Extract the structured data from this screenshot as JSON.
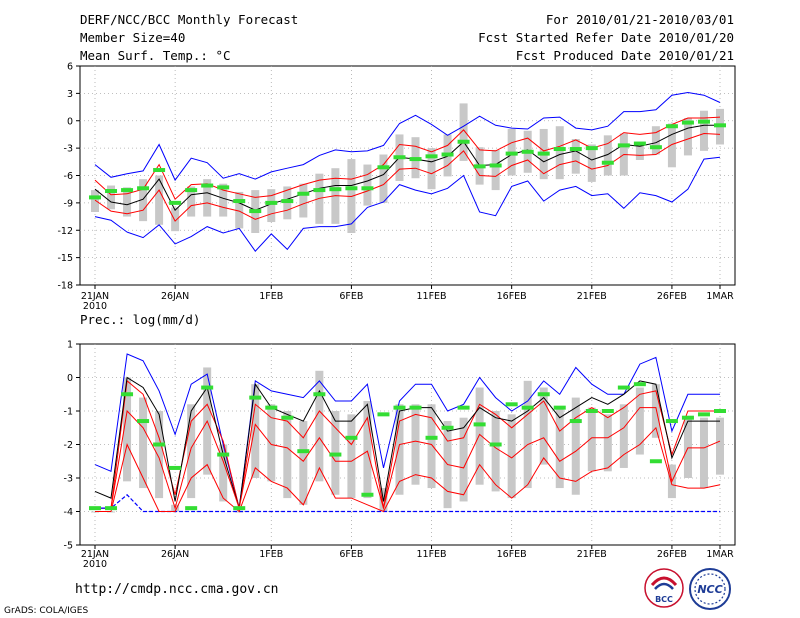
{
  "header": {
    "title": "DERF/NCC/BCC Monthly Forecast",
    "members": "Member Size=40",
    "variable": "Mean Surf. Temp.: °C",
    "period": "For 2010/01/21-2010/03/01",
    "refer": "Fcst Started Refer Date 2010/01/20",
    "produced": "Fcst Produced Date 2010/01/21"
  },
  "footer": {
    "url": "http://cmdp.ncc.cma.gov.cn",
    "credit": "GrADS: COLA/IGES"
  },
  "logos": {
    "bcc": "BCC",
    "ncc": "NCC"
  },
  "colors": {
    "mean": "#000000",
    "spread": "#ff0000",
    "extreme": "#0000ff",
    "box": "#c8c8c8",
    "obs": "#33dd33"
  },
  "chart_data": [
    {
      "type": "line",
      "title": "Mean Surf. Temp.: °C",
      "x_days": 40,
      "ylim": [
        -18,
        6
      ],
      "yticks": [
        6,
        3,
        0,
        -3,
        -6,
        -9,
        -12,
        -15,
        -18
      ],
      "xticks": [
        {
          "day": 0,
          "label": "21JAN",
          "sub": "2010"
        },
        {
          "day": 5,
          "label": "26JAN"
        },
        {
          "day": 11,
          "label": "1FEB"
        },
        {
          "day": 16,
          "label": "6FEB"
        },
        {
          "day": 21,
          "label": "11FEB"
        },
        {
          "day": 26,
          "label": "16FEB"
        },
        {
          "day": 31,
          "label": "21FEB"
        },
        {
          "day": 36,
          "label": "26FEB"
        },
        {
          "day": 39,
          "label": "1MAR"
        }
      ],
      "series": [
        {
          "name": "max",
          "color": "#0000ff",
          "values": [
            -4.8,
            -6.2,
            -5.8,
            -5.5,
            -2.6,
            -6.5,
            -4.1,
            -4.6,
            -6.3,
            -5.8,
            -6.4,
            -5.6,
            -5.2,
            -4.8,
            -3.8,
            -3.2,
            -3.4,
            -3.3,
            -2.7,
            -0.3,
            0.6,
            -0.4,
            -1.6,
            -0.6,
            0.5,
            -0.5,
            -0.8,
            -0.9,
            0.3,
            0.4,
            -0.8,
            -1.0,
            -0.6,
            1.0,
            1.0,
            1.2,
            2.8,
            3.1,
            2.8,
            2.0
          ]
        },
        {
          "name": "mean_plus",
          "color": "#ff0000",
          "values": [
            -6.5,
            -8.1,
            -8.0,
            -7.5,
            -4.8,
            -8.6,
            -7.0,
            -6.9,
            -7.6,
            -8.0,
            -8.4,
            -8.2,
            -7.6,
            -7.0,
            -6.5,
            -6.3,
            -6.4,
            -5.9,
            -4.8,
            -2.6,
            -2.8,
            -3.4,
            -2.7,
            -1.0,
            -3.2,
            -3.3,
            -2.4,
            -1.9,
            -3.3,
            -2.8,
            -2.1,
            -3.0,
            -2.5,
            -1.3,
            -1.5,
            -1.3,
            -0.4,
            0.3,
            0.3,
            0.4
          ]
        },
        {
          "name": "mean",
          "color": "#000000",
          "values": [
            -7.5,
            -8.9,
            -9.2,
            -8.6,
            -6.4,
            -9.8,
            -8.1,
            -7.9,
            -8.5,
            -9.0,
            -9.8,
            -9.1,
            -8.6,
            -8.0,
            -7.4,
            -7.1,
            -7.1,
            -6.6,
            -5.9,
            -4.0,
            -4.2,
            -4.5,
            -3.9,
            -2.3,
            -4.9,
            -4.8,
            -3.7,
            -3.2,
            -4.5,
            -3.7,
            -3.3,
            -4.3,
            -3.7,
            -2.6,
            -2.8,
            -2.4,
            -1.5,
            -0.8,
            -0.5,
            -0.5
          ]
        },
        {
          "name": "mean_minus",
          "color": "#ff0000",
          "values": [
            -8.7,
            -9.9,
            -10.2,
            -9.8,
            -7.6,
            -11.0,
            -9.3,
            -9.0,
            -9.5,
            -9.9,
            -10.8,
            -10.2,
            -9.8,
            -9.1,
            -8.5,
            -8.2,
            -8.3,
            -7.7,
            -7.0,
            -5.3,
            -5.2,
            -5.8,
            -4.9,
            -3.3,
            -6.0,
            -6.1,
            -4.9,
            -4.3,
            -5.8,
            -4.8,
            -4.4,
            -5.3,
            -4.9,
            -3.7,
            -3.8,
            -3.7,
            -2.6,
            -2.0,
            -1.4,
            -1.5
          ]
        },
        {
          "name": "min",
          "color": "#0000ff",
          "values": [
            -10.5,
            -10.9,
            -12.2,
            -12.8,
            -11.4,
            -13.5,
            -12.7,
            -11.6,
            -12.3,
            -11.8,
            -14.3,
            -12.4,
            -14.1,
            -11.8,
            -11.6,
            -11.6,
            -11.3,
            -9.5,
            -8.9,
            -7.0,
            -7.6,
            -8.0,
            -7.4,
            -6.0,
            -10.0,
            -10.4,
            -7.2,
            -6.6,
            -8.8,
            -7.6,
            -7.2,
            -8.2,
            -8.0,
            -9.6,
            -7.9,
            -8.2,
            -8.9,
            -7.5,
            -4.2,
            -4.0
          ]
        }
      ],
      "boxes_low": [
        -10,
        -9.7,
        -10.5,
        -11,
        -11.4,
        -12.1,
        -10.5,
        -10.5,
        -10.5,
        -11.8,
        -12.3,
        -11.1,
        -10.8,
        -10.6,
        -11.3,
        -11.3,
        -12.3,
        -9.3,
        -9.0,
        -6.6,
        -6.3,
        -7.5,
        -6.1,
        -4.4,
        -7.0,
        -7.6,
        -6.0,
        -5.7,
        -6.4,
        -6.4,
        -5.8,
        -6.7,
        -6.0,
        -6.0,
        -4.3,
        -3.7,
        -5.1,
        -3.8,
        -3.3,
        -2.6
      ],
      "boxes_high": [
        -7.6,
        -7.1,
        -7.3,
        -6.4,
        -6.0,
        -9.5,
        -7.2,
        -6.4,
        -6.9,
        -7.8,
        -7.6,
        -7.5,
        -7.2,
        -6.9,
        -5.8,
        -5.2,
        -4.2,
        -4.8,
        -3.7,
        -1.5,
        -1.8,
        -3.0,
        -1.5,
        1.9,
        -2.9,
        -3.2,
        -0.9,
        -1.1,
        -0.9,
        -0.6,
        -2.0,
        -2.6,
        -1.6,
        -1.4,
        -2.3,
        -0.6,
        -0.3,
        0.3,
        1.1,
        1.3
      ],
      "observed": [
        -8.4,
        -7.7,
        -7.6,
        -7.4,
        -5.4,
        -9.0,
        -7.6,
        -7.1,
        -7.3,
        -8.8,
        -9.9,
        -9.0,
        -8.8,
        -8.0,
        -7.6,
        -7.5,
        -7.4,
        -7.4,
        -5.1,
        -4.0,
        -4.2,
        -3.9,
        -3.7,
        -2.3,
        -5.0,
        -4.9,
        -3.6,
        -3.4,
        -3.6,
        -3.1,
        -3.1,
        -3.0,
        -4.6,
        -2.7,
        -2.5,
        -2.9,
        -0.6,
        -0.2,
        -0.1,
        -0.5
      ]
    },
    {
      "type": "line",
      "title": "Prec.: log(mm/d)",
      "x_days": 40,
      "ylim": [
        -5,
        1
      ],
      "yticks": [
        1,
        0,
        -1,
        -2,
        -3,
        -4,
        -5
      ],
      "xticks": [
        {
          "day": 0,
          "label": "21JAN",
          "sub": "2010"
        },
        {
          "day": 5,
          "label": "26JAN"
        },
        {
          "day": 11,
          "label": "1FEB"
        },
        {
          "day": 16,
          "label": "6FEB"
        },
        {
          "day": 21,
          "label": "11FEB"
        },
        {
          "day": 26,
          "label": "16FEB"
        },
        {
          "day": 31,
          "label": "21FEB"
        },
        {
          "day": 36,
          "label": "26FEB"
        },
        {
          "day": 39,
          "label": "1MAR"
        }
      ],
      "series": [
        {
          "name": "max",
          "color": "#0000ff",
          "values": [
            -2.6,
            -2.8,
            0.7,
            0.5,
            -0.4,
            -1.7,
            -0.2,
            0.1,
            -2.0,
            -3.9,
            -0.1,
            -0.4,
            -0.5,
            -0.6,
            -0.1,
            -0.7,
            -0.7,
            -0.2,
            -2.7,
            -0.7,
            -0.2,
            -0.2,
            -1.0,
            -0.8,
            0.0,
            -0.6,
            -1.0,
            -0.7,
            -0.1,
            -0.5,
            0.3,
            -0.2,
            -0.5,
            -0.5,
            0.4,
            0.6,
            -1.6,
            -0.5,
            -0.5,
            -0.5
          ]
        },
        {
          "name": "mean_plus",
          "color": "#ff0000",
          "values": [
            -3.9,
            -3.9,
            -0.1,
            -0.5,
            -1.8,
            -3.5,
            -1.3,
            -0.8,
            -1.9,
            -3.9,
            -0.8,
            -1.2,
            -1.3,
            -1.8,
            -1.0,
            -1.5,
            -2.0,
            -1.2,
            -3.9,
            -1.3,
            -1.1,
            -1.2,
            -1.9,
            -1.8,
            -0.8,
            -1.1,
            -1.5,
            -1.1,
            -0.7,
            -1.6,
            -1.2,
            -0.9,
            -1.2,
            -0.9,
            -0.5,
            -0.4,
            -2.3,
            -1.0,
            -1.0,
            -1.0
          ]
        },
        {
          "name": "mean",
          "color": "#000000",
          "values": [
            -3.4,
            -3.6,
            0.0,
            -0.3,
            -1.1,
            -3.7,
            -1.0,
            -0.3,
            -2.3,
            -3.9,
            -0.2,
            -0.9,
            -1.1,
            -1.3,
            -0.4,
            -1.3,
            -1.3,
            -0.8,
            -3.7,
            -1.0,
            -0.9,
            -0.9,
            -1.6,
            -1.5,
            -0.9,
            -1.2,
            -1.3,
            -1.0,
            -0.6,
            -1.2,
            -0.9,
            -0.6,
            -0.8,
            -0.5,
            -0.1,
            -0.2,
            -2.4,
            -1.3,
            -1.3,
            -1.3
          ]
        },
        {
          "name": "mean_minus",
          "color": "#ff0000",
          "values": [
            -3.9,
            -3.9,
            -1.0,
            -1.5,
            -2.4,
            -3.9,
            -2.1,
            -1.3,
            -2.5,
            -3.9,
            -1.4,
            -2.0,
            -2.1,
            -2.5,
            -1.8,
            -2.5,
            -2.5,
            -2.2,
            -3.9,
            -2.0,
            -1.9,
            -2.0,
            -2.6,
            -2.7,
            -1.7,
            -2.1,
            -2.4,
            -2.0,
            -1.8,
            -2.5,
            -2.2,
            -1.8,
            -1.8,
            -1.5,
            -0.9,
            -0.9,
            -3.1,
            -2.1,
            -2.1,
            -1.9
          ]
        },
        {
          "name": "min",
          "color": "#0000ff",
          "values": [
            -3.9,
            -3.9,
            -3.5,
            -4.0,
            -4.0,
            -4.0,
            -4.0,
            -4.0,
            -4.0,
            -4.0,
            -4.0,
            -4.0,
            -4.0,
            -4.0,
            -4.0,
            -4.0,
            -4.0,
            -4.0,
            -4.0,
            -4.0,
            -4.0,
            -4.0,
            -4.0,
            -4.0,
            -4.0,
            -4.0,
            -4.0,
            -4.0,
            -4.0,
            -4.0,
            -4.0,
            -4.0,
            -4.0,
            -4.0,
            -4.0,
            -4.0,
            -4.0,
            -4.0,
            -4.0,
            -4.0
          ]
        },
        {
          "name": "low_red",
          "color": "#ff0000",
          "values": [
            -4.0,
            -4.0,
            -2.0,
            -3.0,
            -4.0,
            -4.0,
            -3.0,
            -2.6,
            -3.6,
            -4.0,
            -2.7,
            -3.1,
            -3.3,
            -3.8,
            -2.7,
            -3.6,
            -3.6,
            -3.8,
            -4.0,
            -3.1,
            -2.9,
            -3.0,
            -3.4,
            -3.5,
            -2.6,
            -3.2,
            -3.6,
            -3.2,
            -2.4,
            -3.0,
            -3.1,
            -2.8,
            -2.7,
            -2.3,
            -2.0,
            -1.5,
            -3.2,
            -3.3,
            -3.3,
            -3.2
          ]
        }
      ],
      "boxes_low": [
        -4.0,
        -4.0,
        -3.1,
        -3.3,
        -3.6,
        -4.0,
        -3.6,
        -2.9,
        -3.7,
        -4.0,
        -3.0,
        -3.1,
        -3.6,
        -3.8,
        -3.1,
        -3.5,
        -3.6,
        -3.6,
        -4.0,
        -3.5,
        -3.2,
        -3.3,
        -3.9,
        -3.7,
        -3.2,
        -3.4,
        -3.6,
        -3.3,
        -2.6,
        -3.3,
        -3.5,
        -2.8,
        -2.8,
        -2.7,
        -2.3,
        -1.8,
        -3.6,
        -3.0,
        -3.3,
        -2.9
      ],
      "boxes_high": [
        -4.0,
        -4.0,
        0.0,
        -0.6,
        -1.0,
        -3.8,
        -0.8,
        0.3,
        -2.0,
        -4.0,
        -0.2,
        -0.8,
        -1.0,
        -1.3,
        0.2,
        -1.0,
        -1.1,
        -0.7,
        -3.3,
        -0.8,
        -0.8,
        -0.8,
        -1.3,
        -1.2,
        -0.3,
        -1.0,
        -1.1,
        -0.1,
        -0.3,
        -0.9,
        -0.6,
        -0.9,
        -1.1,
        -0.8,
        -0.3,
        -0.2,
        -2.6,
        -1.2,
        -1.2,
        -1.2
      ],
      "observed": [
        -3.9,
        -3.9,
        -0.5,
        -1.3,
        -2.0,
        -2.7,
        -3.9,
        -0.3,
        -2.3,
        -3.9,
        -0.6,
        -0.9,
        -1.2,
        -2.2,
        -0.5,
        -2.3,
        -1.8,
        -3.5,
        -1.1,
        -0.9,
        -0.9,
        -1.8,
        -1.5,
        -0.9,
        -1.4,
        -2.0,
        -0.8,
        -0.9,
        -0.5,
        -0.9,
        -1.3,
        -1.0,
        -1.0,
        -0.3,
        -0.2,
        -2.5,
        -1.3,
        -1.2,
        -1.1,
        -1.0
      ]
    }
  ]
}
